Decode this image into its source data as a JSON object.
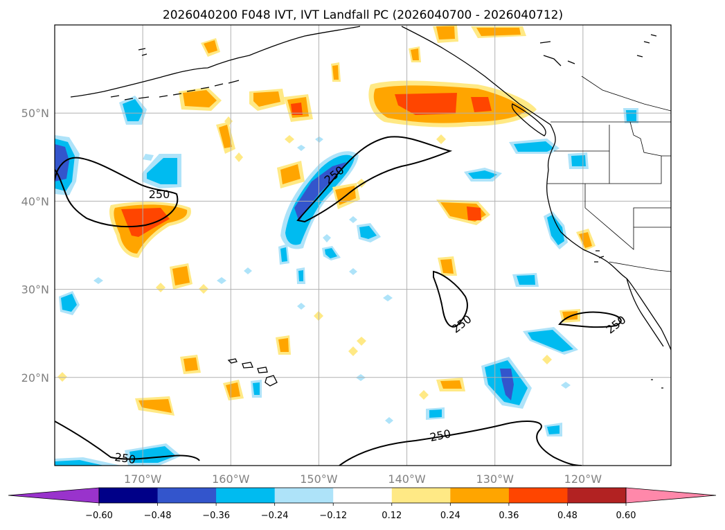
{
  "chart_data": {
    "type": "map-contour",
    "title": "2026040200 F048 IVT, IVT Landfall PC (2026040700 - 2026040712)",
    "lon_range": [
      -180,
      -110
    ],
    "lat_range": [
      10,
      60
    ],
    "lat_ticks": [
      {
        "value": 50,
        "label": "50°N"
      },
      {
        "value": 40,
        "label": "40°N"
      },
      {
        "value": 30,
        "label": "30°N"
      },
      {
        "value": 20,
        "label": "20°N"
      }
    ],
    "lon_ticks": [
      {
        "value": -170,
        "label": "170°W"
      },
      {
        "value": -160,
        "label": "160°W"
      },
      {
        "value": -150,
        "label": "150°W"
      },
      {
        "value": -140,
        "label": "140°W"
      },
      {
        "value": -130,
        "label": "130°W"
      },
      {
        "value": -120,
        "label": "120°W"
      }
    ],
    "ivt_contour_level": 250,
    "contour_label": "250",
    "colorbar": {
      "boundaries": [
        "−0.60",
        "−0.48",
        "−0.36",
        "−0.24",
        "−0.12",
        "0.12",
        "0.24",
        "0.36",
        "0.48",
        "0.60"
      ],
      "colors": [
        "#9933cc",
        "#000088",
        "#3355cc",
        "#00bbf0",
        "#aee3f9",
        "#ffffff",
        "#ffe985",
        "#ffa500",
        "#ff4500",
        "#b22222",
        "#ff88aa"
      ],
      "extend": "both"
    },
    "pc_levels": {
      "neg_strong": "#3355cc",
      "neg_mid": "#00bbf0",
      "neg_light": "#aee3f9",
      "pos_light": "#ffe985",
      "pos_mid": "#ffa500",
      "pos_strong": "#ff4500"
    }
  }
}
